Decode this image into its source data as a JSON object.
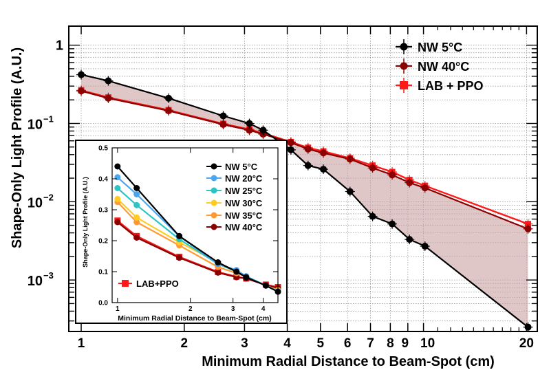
{
  "chart_data": [
    {
      "type": "line",
      "xscale": "log",
      "yscale": "log",
      "xlabel": "Minimum Radial Distance to Beam-Spot (cm)",
      "ylabel": "Shape-Only Light Profile (A.U.)",
      "xlim": [
        0.92,
        21.5
      ],
      "ylim": [
        0.00022,
        1.75
      ],
      "x_ticks": [
        {
          "value": 1,
          "label": "1"
        },
        {
          "value": 2,
          "label": "2"
        },
        {
          "value": 3,
          "label": "3"
        },
        {
          "value": 4,
          "label": "4"
        },
        {
          "value": 5,
          "label": "5"
        },
        {
          "value": 6,
          "label": "6"
        },
        {
          "value": 7,
          "label": "7"
        },
        {
          "value": 8,
          "label": "8"
        },
        {
          "value": 9,
          "label": "9"
        },
        {
          "value": 10,
          "label": "10"
        },
        {
          "value": 20,
          "label": "20"
        }
      ],
      "y_ticks": [
        {
          "value": 1,
          "label": "1",
          "exp": ""
        },
        {
          "value": 0.1,
          "label": "10",
          "exp": "−1"
        },
        {
          "value": 0.01,
          "label": "10",
          "exp": "−2"
        },
        {
          "value": 0.001,
          "label": "10",
          "exp": "−3"
        }
      ],
      "grid": true,
      "legend_position": "top-right",
      "shaded_band": {
        "between": [
          "NW 5°C",
          "NW 40°C"
        ],
        "color": "#c9a1a4"
      },
      "series": [
        {
          "name": "NW 5°C",
          "color": "#000000",
          "x": [
            1.0,
            1.2,
            1.8,
            2.6,
            3.1,
            3.4,
            4.1,
            4.6,
            5.1,
            6.1,
            7.1,
            8.1,
            9.1,
            10.1,
            20.2
          ],
          "y": [
            0.42,
            0.35,
            0.21,
            0.125,
            0.1,
            0.082,
            0.046,
            0.029,
            0.026,
            0.0135,
            0.0065,
            0.0052,
            0.0033,
            0.0027,
            0.00025
          ]
        },
        {
          "name": "NW 40°C",
          "color": "#8b0000",
          "x": [
            1.0,
            1.2,
            1.8,
            2.6,
            3.1,
            3.4,
            4.1,
            4.6,
            5.1,
            6.1,
            7.1,
            8.1,
            9.1,
            10.1,
            20.2
          ],
          "y": [
            0.26,
            0.21,
            0.145,
            0.097,
            0.082,
            0.073,
            0.057,
            0.047,
            0.042,
            0.035,
            0.027,
            0.022,
            0.0175,
            0.015,
            0.0045
          ]
        },
        {
          "name": "LAB + PPO",
          "color": "#ff1a1a",
          "x": [
            1.0,
            1.2,
            1.8,
            2.6,
            3.1,
            3.4,
            4.1,
            4.6,
            5.1,
            6.1,
            7.1,
            8.1,
            9.1,
            10.1,
            20.2
          ],
          "y": [
            0.265,
            0.215,
            0.148,
            0.099,
            0.084,
            0.075,
            0.058,
            0.049,
            0.044,
            0.036,
            0.029,
            0.024,
            0.019,
            0.016,
            0.0052
          ]
        }
      ]
    },
    {
      "type": "line",
      "xscale": "log",
      "yscale": "linear",
      "xlabel": "Minimum Radial Distance to Beam-Spot (cm)",
      "ylabel": "Shape-Only Light Profile (A.U.)",
      "xlim": [
        0.95,
        4.6
      ],
      "ylim": [
        0.0,
        0.5
      ],
      "x_ticks": [
        {
          "value": 1,
          "label": "1"
        },
        {
          "value": 2,
          "label": "2"
        },
        {
          "value": 3,
          "label": "3"
        },
        {
          "value": 4,
          "label": "4"
        }
      ],
      "y_ticks": [
        {
          "value": 0.0,
          "label": "0.0"
        },
        {
          "value": 0.1,
          "label": "0.1"
        },
        {
          "value": 0.2,
          "label": "0.2"
        },
        {
          "value": 0.3,
          "label": "0.3"
        },
        {
          "value": 0.4,
          "label": "0.4"
        },
        {
          "value": 0.5,
          "label": "0.5"
        }
      ],
      "legend_position": "top-right",
      "series": [
        {
          "name": "NW 5°C",
          "color": "#000000",
          "x": [
            1.0,
            1.2,
            1.8,
            2.6,
            3.1,
            3.4,
            4.1,
            4.6
          ],
          "y": [
            0.44,
            0.37,
            0.215,
            0.13,
            0.1,
            0.082,
            0.055,
            0.035
          ]
        },
        {
          "name": "NW 20°C",
          "color": "#4aa6f0",
          "x": [
            1.0,
            1.2,
            1.8,
            2.6,
            3.1,
            3.4,
            4.1,
            4.6
          ],
          "y": [
            0.405,
            0.35,
            0.215,
            0.125,
            0.105,
            0.085,
            0.055,
            0.037
          ]
        },
        {
          "name": "NW 25°C",
          "color": "#2ec4c4",
          "x": [
            1.0,
            1.2,
            1.8,
            2.6,
            3.1,
            3.4,
            4.1,
            4.6
          ],
          "y": [
            0.37,
            0.315,
            0.205,
            0.125,
            0.1,
            0.085,
            0.055,
            0.037
          ]
        },
        {
          "name": "NW 30°C",
          "color": "#ffcc22",
          "x": [
            1.0,
            1.2,
            1.8,
            2.6,
            3.1,
            3.4,
            4.1,
            4.6
          ],
          "y": [
            0.335,
            0.275,
            0.195,
            0.13,
            0.1,
            0.085,
            0.055,
            0.04
          ]
        },
        {
          "name": "NW 35°C",
          "color": "#ff9933",
          "x": [
            1.0,
            1.2,
            1.8,
            2.6,
            3.1,
            3.4,
            4.1,
            4.6
          ],
          "y": [
            0.325,
            0.26,
            0.185,
            0.115,
            0.095,
            0.085,
            0.055,
            0.04
          ]
        },
        {
          "name": "NW 40°C",
          "color": "#8b0000",
          "x": [
            1.0,
            1.2,
            1.8,
            2.6,
            3.1,
            3.4,
            4.1,
            4.6
          ],
          "y": [
            0.26,
            0.21,
            0.145,
            0.097,
            0.082,
            0.078,
            0.057,
            0.047
          ]
        },
        {
          "name": "LAB+PPO",
          "color": "#ff1a1a",
          "x": [
            1.0,
            1.2,
            1.8,
            2.6,
            3.1,
            3.4,
            4.1,
            4.6
          ],
          "y": [
            0.265,
            0.215,
            0.148,
            0.099,
            0.084,
            0.078,
            0.058,
            0.05
          ]
        }
      ]
    }
  ]
}
